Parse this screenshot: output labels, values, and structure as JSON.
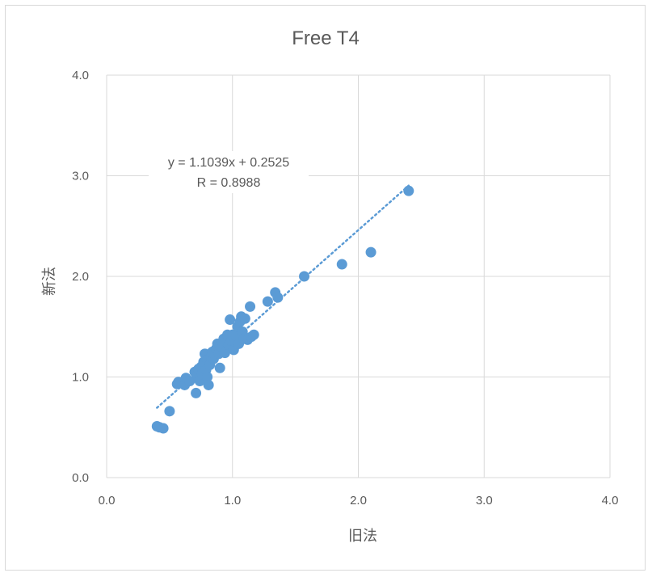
{
  "chart_data": {
    "type": "scatter",
    "title": "Free T4",
    "xlabel": "旧法",
    "ylabel": "新法",
    "xlim": [
      0.0,
      4.0
    ],
    "ylim": [
      0.0,
      4.0
    ],
    "x_ticks": [
      "0.0",
      "1.0",
      "2.0",
      "3.0",
      "4.0"
    ],
    "y_ticks": [
      "0.0",
      "1.0",
      "2.0",
      "3.0",
      "4.0"
    ],
    "grid": true,
    "legend": "none",
    "series_color": "#5b9bd5",
    "gridline_color": "#d9d9d9",
    "trendline": {
      "type": "linear",
      "style": "dotted",
      "slope": 1.1039,
      "intercept": 0.2525,
      "x_range": [
        0.4,
        2.4
      ],
      "equation_label": "y = 1.1039x + 0.2525",
      "r_label": "R = 0.8988"
    },
    "points": [
      [
        0.4,
        0.51
      ],
      [
        0.42,
        0.5
      ],
      [
        0.45,
        0.49
      ],
      [
        0.5,
        0.66
      ],
      [
        0.56,
        0.93
      ],
      [
        0.57,
        0.95
      ],
      [
        0.62,
        0.92
      ],
      [
        0.63,
        0.99
      ],
      [
        0.66,
        0.96
      ],
      [
        0.7,
        1.05
      ],
      [
        0.71,
        0.84
      ],
      [
        0.72,
        1.02
      ],
      [
        0.73,
        1.08
      ],
      [
        0.74,
        0.96
      ],
      [
        0.75,
        1.1
      ],
      [
        0.76,
        1.03
      ],
      [
        0.77,
        1.15
      ],
      [
        0.78,
        1.23
      ],
      [
        0.79,
        1.07
      ],
      [
        0.8,
        1.17
      ],
      [
        0.8,
        1.0
      ],
      [
        0.81,
        0.92
      ],
      [
        0.82,
        1.12
      ],
      [
        0.83,
        1.2
      ],
      [
        0.84,
        1.25
      ],
      [
        0.85,
        1.18
      ],
      [
        0.86,
        1.22
      ],
      [
        0.87,
        1.28
      ],
      [
        0.88,
        1.33
      ],
      [
        0.89,
        1.23
      ],
      [
        0.9,
        1.09
      ],
      [
        0.9,
        1.31
      ],
      [
        0.92,
        1.3
      ],
      [
        0.93,
        1.38
      ],
      [
        0.94,
        1.24
      ],
      [
        0.95,
        1.35
      ],
      [
        0.96,
        1.42
      ],
      [
        0.97,
        1.32
      ],
      [
        0.98,
        1.57
      ],
      [
        0.99,
        1.36
      ],
      [
        1.0,
        1.42
      ],
      [
        1.01,
        1.27
      ],
      [
        1.02,
        1.35
      ],
      [
        1.03,
        1.4
      ],
      [
        1.04,
        1.5
      ],
      [
        1.05,
        1.33
      ],
      [
        1.06,
        1.55
      ],
      [
        1.07,
        1.6
      ],
      [
        1.08,
        1.45
      ],
      [
        1.09,
        1.38
      ],
      [
        1.1,
        1.58
      ],
      [
        1.12,
        1.37
      ],
      [
        1.14,
        1.7
      ],
      [
        1.15,
        1.4
      ],
      [
        1.17,
        1.42
      ],
      [
        1.28,
        1.75
      ],
      [
        1.34,
        1.84
      ],
      [
        1.36,
        1.79
      ],
      [
        1.57,
        2.0
      ],
      [
        1.87,
        2.12
      ],
      [
        2.1,
        2.24
      ],
      [
        2.4,
        2.85
      ]
    ]
  }
}
